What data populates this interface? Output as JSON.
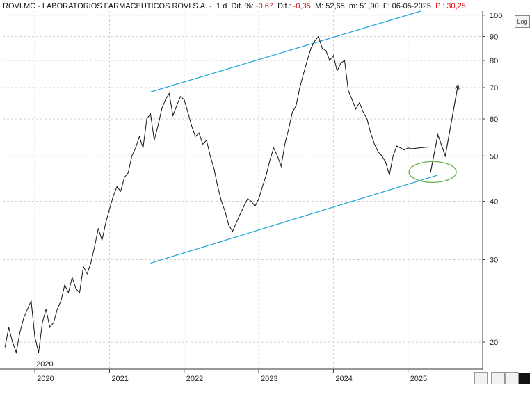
{
  "header": {
    "ticker": "ROVI.MC - LABORATORIOS FARMACEUTICOS ROVI S.A. -",
    "timeframe": "1 d",
    "dif_pct_label": "Dif. %:",
    "dif_pct_value": "-0,67",
    "dif_label": "Dif.:",
    "dif_value": "-0,35",
    "max_label": "M: 52,65",
    "min_label": "m: 51,90",
    "date_label": "F: 06-05-2025",
    "p_label": "P : 30,25"
  },
  "toolbar": {
    "log_button": "Log"
  },
  "chart_data": {
    "type": "line",
    "scale": "log",
    "ylim": [
      17.5,
      102
    ],
    "y_ticks": [
      20,
      30,
      40,
      50,
      60,
      70,
      80,
      90,
      100
    ],
    "x_ticks": [
      "2020",
      "2021",
      "2022",
      "2023",
      "2024",
      "2025"
    ],
    "x_range": [
      2019.57,
      2026.0
    ],
    "series": [
      {
        "x": [
          2019.6,
          2019.65,
          2019.7,
          2019.75,
          2019.8,
          2019.85,
          2019.9,
          2019.95,
          2020.0,
          2020.05,
          2020.1,
          2020.15,
          2020.2,
          2020.25,
          2020.3,
          2020.35,
          2020.4,
          2020.45,
          2020.5,
          2020.55,
          2020.6,
          2020.65,
          2020.7,
          2020.75,
          2020.8,
          2020.85,
          2020.9,
          2020.95,
          2021.0,
          2021.05,
          2021.1,
          2021.15,
          2021.2,
          2021.25,
          2021.3,
          2021.35,
          2021.4,
          2021.45,
          2021.5,
          2021.55,
          2021.6,
          2021.65,
          2021.7,
          2021.75,
          2021.8,
          2021.85,
          2021.9,
          2021.95,
          2022.0,
          2022.05,
          2022.1,
          2022.15,
          2022.2,
          2022.25,
          2022.3,
          2022.35,
          2022.4,
          2022.45,
          2022.5,
          2022.55,
          2022.6,
          2022.65,
          2022.7,
          2022.75,
          2022.8,
          2022.85,
          2022.9,
          2022.95,
          2023.0,
          2023.05,
          2023.1,
          2023.15,
          2023.2,
          2023.25,
          2023.3,
          2023.35,
          2023.4,
          2023.45,
          2023.5,
          2023.55,
          2023.6,
          2023.65,
          2023.7,
          2023.75,
          2023.8,
          2023.85,
          2023.9,
          2023.95,
          2024.0,
          2024.05,
          2024.1,
          2024.15,
          2024.2,
          2024.25,
          2024.3,
          2024.35,
          2024.4,
          2024.45,
          2024.5,
          2024.55,
          2024.6,
          2024.65,
          2024.7,
          2024.75,
          2024.8,
          2024.85,
          2024.9,
          2024.95,
          2025.0,
          2025.05,
          2025.1,
          2025.15,
          2025.2,
          2025.25,
          2025.3
        ],
        "y": [
          19.5,
          21.5,
          20.0,
          19.0,
          21.0,
          22.5,
          23.5,
          24.5,
          20.5,
          19.0,
          22.0,
          23.5,
          21.5,
          22.0,
          23.5,
          24.5,
          26.5,
          25.5,
          27.5,
          26.0,
          25.5,
          29.0,
          28.0,
          29.5,
          32.0,
          35.0,
          33.0,
          36.0,
          38.5,
          41.0,
          43.0,
          42.0,
          45.0,
          46.0,
          50.0,
          52.0,
          55.0,
          52.0,
          60.0,
          61.5,
          54.0,
          58.0,
          63.0,
          66.0,
          68.0,
          61.0,
          64.0,
          67.0,
          66.0,
          62.0,
          58.0,
          55.0,
          56.0,
          53.0,
          54.0,
          50.0,
          47.0,
          43.0,
          40.0,
          38.0,
          35.5,
          34.5,
          36.0,
          37.5,
          39.0,
          40.5,
          40.0,
          39.0,
          40.5,
          43.0,
          45.5,
          49.0,
          52.0,
          50.0,
          47.5,
          53.0,
          57.0,
          62.0,
          64.0,
          70.0,
          75.0,
          80.0,
          85.0,
          88.0,
          90.0,
          85.0,
          84.0,
          80.0,
          82.0,
          76.0,
          79.0,
          80.0,
          69.0,
          66.0,
          63.0,
          65.0,
          62.0,
          60.0,
          56.0,
          53.0,
          51.0,
          50.0,
          48.5,
          45.5,
          50.0,
          52.5,
          52.0,
          51.5,
          52.0,
          51.8,
          51.9,
          52.0,
          52.1,
          52.2,
          52.3
        ]
      }
    ],
    "annotations": {
      "channel_upper": {
        "x": [
          2021.55,
          2025.17
        ],
        "y": [
          68.5,
          102.0
        ]
      },
      "channel_lower": {
        "x": [
          2021.55,
          2025.4
        ],
        "y": [
          29.5,
          45.5
        ]
      },
      "projection_arrow": {
        "x": [
          2025.3,
          2025.4,
          2025.5,
          2025.67
        ],
        "y": [
          46.0,
          55.5,
          50.0,
          71.0
        ]
      },
      "ellipse_center": {
        "x": 2025.33,
        "y": 46.2
      },
      "colors": {
        "price": "#111111",
        "channel": "#1aa3d9",
        "ellipse": "#6ab04c",
        "arrow": "#222222"
      }
    }
  }
}
